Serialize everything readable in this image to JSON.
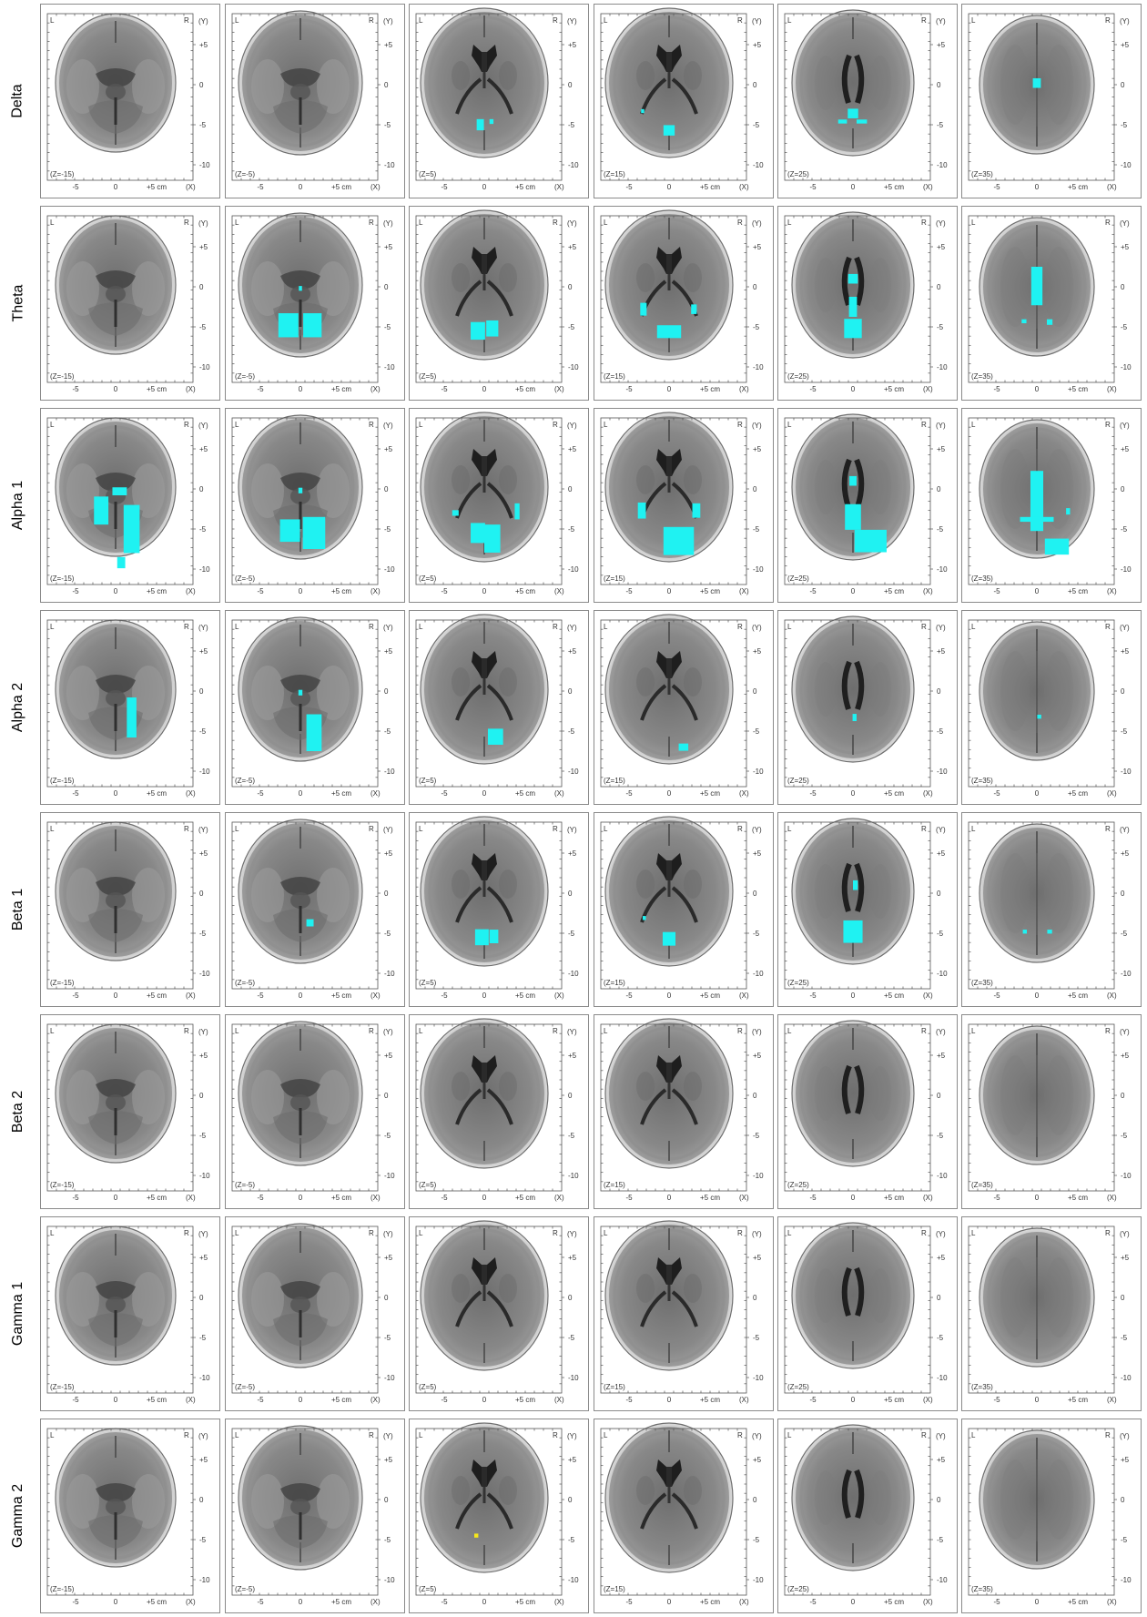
{
  "rows": [
    {
      "label": "Delta",
      "blobs": [
        [],
        [],
        [
          {
            "x": -0.5,
            "y": -5,
            "w": 0.9,
            "h": 1.4
          },
          {
            "x": 0.9,
            "y": -4.6,
            "w": 0.5,
            "h": 0.6
          }
        ],
        [
          {
            "x": 0,
            "y": -5.7,
            "w": 1.4,
            "h": 1.3
          },
          {
            "x": -3.3,
            "y": -3.3,
            "w": 0.4,
            "h": 0.5
          }
        ],
        [
          {
            "x": 0,
            "y": -3.6,
            "w": 1.3,
            "h": 1.2
          },
          {
            "x": -1.3,
            "y": -4.6,
            "w": 1.1,
            "h": 0.5
          },
          {
            "x": 1.1,
            "y": -4.6,
            "w": 1.3,
            "h": 0.5
          }
        ],
        [
          {
            "x": 0,
            "y": 0.2,
            "w": 1.0,
            "h": 1.2
          }
        ]
      ]
    },
    {
      "label": "Theta",
      "blobs": [
        [],
        [
          {
            "x": -1.5,
            "y": -4.8,
            "w": 2.5,
            "h": 3.0
          },
          {
            "x": 1.5,
            "y": -4.8,
            "w": 2.3,
            "h": 3.0
          },
          {
            "x": 0,
            "y": -0.2,
            "w": 0.4,
            "h": 0.6
          }
        ],
        [
          {
            "x": -0.8,
            "y": -5.5,
            "w": 1.8,
            "h": 2.2
          },
          {
            "x": 1.0,
            "y": -5.2,
            "w": 1.5,
            "h": 2.0
          }
        ],
        [
          {
            "x": 0,
            "y": -5.6,
            "w": 3.0,
            "h": 1.6
          },
          {
            "x": -3.2,
            "y": -2.8,
            "w": 0.8,
            "h": 1.6
          },
          {
            "x": 3.1,
            "y": -2.8,
            "w": 0.7,
            "h": 1.2
          }
        ],
        [
          {
            "x": 0,
            "y": -5.2,
            "w": 2.2,
            "h": 2.4
          },
          {
            "x": 0,
            "y": -2.5,
            "w": 1.0,
            "h": 2.5
          },
          {
            "x": 0,
            "y": 1.0,
            "w": 1.2,
            "h": 1.2
          }
        ],
        [
          {
            "x": 0,
            "y": 0.1,
            "w": 1.4,
            "h": 4.8
          },
          {
            "x": -1.6,
            "y": -4.3,
            "w": 0.6,
            "h": 0.5
          },
          {
            "x": 1.6,
            "y": -4.4,
            "w": 0.7,
            "h": 0.7
          }
        ]
      ]
    },
    {
      "label": "Alpha 1",
      "blobs": [
        [
          {
            "x": -1.8,
            "y": -2.7,
            "w": 1.8,
            "h": 3.5
          },
          {
            "x": 0.5,
            "y": -0.3,
            "w": 1.8,
            "h": 1.0
          },
          {
            "x": 2.0,
            "y": -5.0,
            "w": 2.0,
            "h": 6.0
          },
          {
            "x": 0.7,
            "y": -9.2,
            "w": 1.0,
            "h": 1.4
          }
        ],
        [
          {
            "x": -1.3,
            "y": -5.2,
            "w": 2.5,
            "h": 2.8
          },
          {
            "x": 1.7,
            "y": -5.5,
            "w": 2.8,
            "h": 4.0
          },
          {
            "x": 0,
            "y": -0.2,
            "w": 0.5,
            "h": 0.7
          }
        ],
        [
          {
            "x": -0.8,
            "y": -5.5,
            "w": 1.8,
            "h": 2.5
          },
          {
            "x": 1.0,
            "y": -6.2,
            "w": 2.0,
            "h": 3.5
          },
          {
            "x": -3.6,
            "y": -3.0,
            "w": 0.8,
            "h": 0.7
          },
          {
            "x": 4.1,
            "y": -2.8,
            "w": 0.6,
            "h": 2.0
          }
        ],
        [
          {
            "x": 1.2,
            "y": -6.5,
            "w": 3.8,
            "h": 3.5
          },
          {
            "x": -3.4,
            "y": -2.7,
            "w": 1.0,
            "h": 2.0
          },
          {
            "x": 3.4,
            "y": -2.7,
            "w": 1.0,
            "h": 1.8
          }
        ],
        [
          {
            "x": 0,
            "y": -3.5,
            "w": 2.0,
            "h": 3.2
          },
          {
            "x": 0,
            "y": 1.0,
            "w": 0.9,
            "h": 1.2
          },
          {
            "x": 2.2,
            "y": -6.5,
            "w": 4.0,
            "h": 2.8
          }
        ],
        [
          {
            "x": 0,
            "y": -1.5,
            "w": 1.6,
            "h": 7.5
          },
          {
            "x": 0,
            "y": -3.8,
            "w": 4.2,
            "h": 0.6
          },
          {
            "x": 2.5,
            "y": -7.2,
            "w": 3.0,
            "h": 2.0
          },
          {
            "x": 3.9,
            "y": -2.8,
            "w": 0.5,
            "h": 0.8
          }
        ]
      ]
    },
    {
      "label": "Alpha 2",
      "blobs": [
        [
          {
            "x": 2.0,
            "y": -3.3,
            "w": 1.2,
            "h": 5.0
          }
        ],
        [
          {
            "x": 1.7,
            "y": -5.2,
            "w": 1.9,
            "h": 4.6
          },
          {
            "x": 0,
            "y": -0.2,
            "w": 0.5,
            "h": 0.7
          }
        ],
        [
          {
            "x": 1.4,
            "y": -5.7,
            "w": 1.9,
            "h": 2.0
          }
        ],
        [
          {
            "x": 1.8,
            "y": -7.0,
            "w": 1.2,
            "h": 0.9
          }
        ],
        [
          {
            "x": 0.2,
            "y": -3.3,
            "w": 0.5,
            "h": 0.9
          }
        ],
        [
          {
            "x": 0.3,
            "y": -3.2,
            "w": 0.5,
            "h": 0.5
          }
        ]
      ]
    },
    {
      "label": "Beta 1",
      "blobs": [
        [],
        [
          {
            "x": 1.2,
            "y": -3.7,
            "w": 0.9,
            "h": 0.9
          }
        ],
        [
          {
            "x": -0.3,
            "y": -5.5,
            "w": 1.7,
            "h": 2.0
          },
          {
            "x": 1.2,
            "y": -5.4,
            "w": 1.1,
            "h": 1.7
          }
        ],
        [
          {
            "x": 0,
            "y": -5.7,
            "w": 1.6,
            "h": 1.7
          },
          {
            "x": -3.1,
            "y": -3.1,
            "w": 0.4,
            "h": 0.5
          }
        ],
        [
          {
            "x": 0,
            "y": -4.8,
            "w": 2.4,
            "h": 2.8
          },
          {
            "x": 0.3,
            "y": 1.0,
            "w": 0.6,
            "h": 1.2
          }
        ],
        [
          {
            "x": -1.5,
            "y": -4.8,
            "w": 0.5,
            "h": 0.5
          },
          {
            "x": 1.6,
            "y": -4.8,
            "w": 0.6,
            "h": 0.5
          }
        ]
      ]
    },
    {
      "label": "Beta 2",
      "blobs": [
        [],
        [],
        [],
        [],
        [],
        []
      ]
    },
    {
      "label": "Gamma 1",
      "blobs": [
        [],
        [],
        [],
        [],
        [],
        []
      ]
    },
    {
      "label": "Gamma 2",
      "blobs": [
        [],
        [],
        [
          {
            "x": -1.0,
            "y": -4.5,
            "w": 0.5,
            "h": 0.5,
            "color": "#f7e81a"
          }
        ],
        [],
        [],
        []
      ]
    }
  ],
  "slices": [
    {
      "label": "(Z=-15)",
      "shape": "inferior"
    },
    {
      "label": "(Z=-5)",
      "shape": "lower"
    },
    {
      "label": "(Z=5)",
      "shape": "mid"
    },
    {
      "label": "(Z=15)",
      "shape": "mid-upper"
    },
    {
      "label": "(Z=25)",
      "shape": "upper"
    },
    {
      "label": "(Z=35)",
      "shape": "top"
    }
  ],
  "axes": {
    "left_label": "L",
    "right_label": "R",
    "y_axis_label": "(Y)",
    "x_axis_label": "(X)",
    "x_ticks": [
      "-5",
      "0",
      "+5 cm"
    ],
    "y_ticks": [
      "+5",
      "0",
      "-5",
      "-10"
    ]
  },
  "colors": {
    "activation": "#1ff2f2",
    "frame": "#8a8a8a",
    "plot_border": "#555555"
  }
}
